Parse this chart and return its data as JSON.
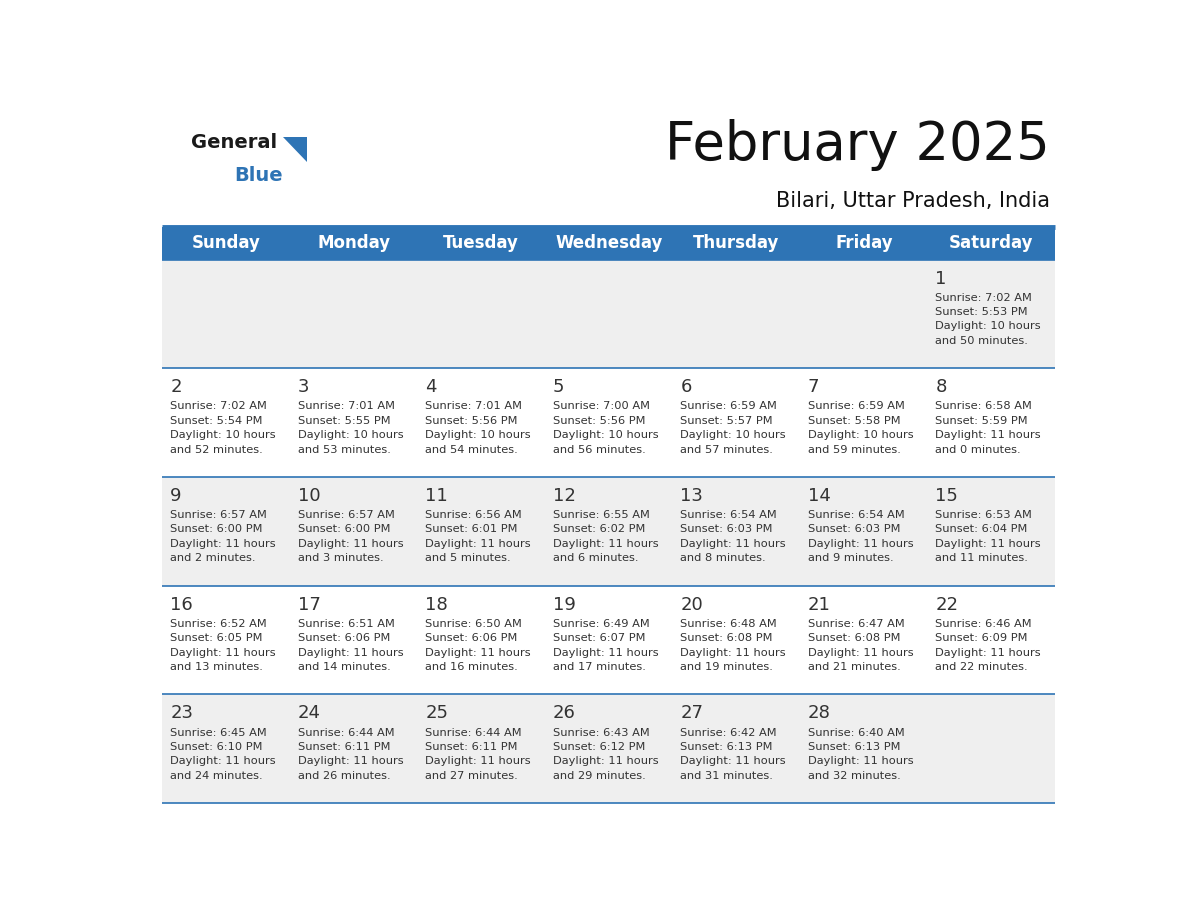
{
  "title": "February 2025",
  "subtitle": "Bilari, Uttar Pradesh, India",
  "header_bg": "#2E74B5",
  "header_text_color": "#FFFFFF",
  "day_names": [
    "Sunday",
    "Monday",
    "Tuesday",
    "Wednesday",
    "Thursday",
    "Friday",
    "Saturday"
  ],
  "cell_bg_white": "#FFFFFF",
  "cell_bg_gray": "#EFEFEF",
  "separator_color": "#2E74B5",
  "day_number_color": "#333333",
  "detail_text_color": "#333333",
  "logo_black": "#1a1a1a",
  "logo_blue": "#2E74B5",
  "calendar": [
    [
      null,
      null,
      null,
      null,
      null,
      null,
      {
        "day": "1",
        "sunrise": "7:02 AM",
        "sunset": "5:53 PM",
        "daylight": "10 hours\nand 50 minutes."
      }
    ],
    [
      {
        "day": "2",
        "sunrise": "7:02 AM",
        "sunset": "5:54 PM",
        "daylight": "10 hours\nand 52 minutes."
      },
      {
        "day": "3",
        "sunrise": "7:01 AM",
        "sunset": "5:55 PM",
        "daylight": "10 hours\nand 53 minutes."
      },
      {
        "day": "4",
        "sunrise": "7:01 AM",
        "sunset": "5:56 PM",
        "daylight": "10 hours\nand 54 minutes."
      },
      {
        "day": "5",
        "sunrise": "7:00 AM",
        "sunset": "5:56 PM",
        "daylight": "10 hours\nand 56 minutes."
      },
      {
        "day": "6",
        "sunrise": "6:59 AM",
        "sunset": "5:57 PM",
        "daylight": "10 hours\nand 57 minutes."
      },
      {
        "day": "7",
        "sunrise": "6:59 AM",
        "sunset": "5:58 PM",
        "daylight": "10 hours\nand 59 minutes."
      },
      {
        "day": "8",
        "sunrise": "6:58 AM",
        "sunset": "5:59 PM",
        "daylight": "11 hours\nand 0 minutes."
      }
    ],
    [
      {
        "day": "9",
        "sunrise": "6:57 AM",
        "sunset": "6:00 PM",
        "daylight": "11 hours\nand 2 minutes."
      },
      {
        "day": "10",
        "sunrise": "6:57 AM",
        "sunset": "6:00 PM",
        "daylight": "11 hours\nand 3 minutes."
      },
      {
        "day": "11",
        "sunrise": "6:56 AM",
        "sunset": "6:01 PM",
        "daylight": "11 hours\nand 5 minutes."
      },
      {
        "day": "12",
        "sunrise": "6:55 AM",
        "sunset": "6:02 PM",
        "daylight": "11 hours\nand 6 minutes."
      },
      {
        "day": "13",
        "sunrise": "6:54 AM",
        "sunset": "6:03 PM",
        "daylight": "11 hours\nand 8 minutes."
      },
      {
        "day": "14",
        "sunrise": "6:54 AM",
        "sunset": "6:03 PM",
        "daylight": "11 hours\nand 9 minutes."
      },
      {
        "day": "15",
        "sunrise": "6:53 AM",
        "sunset": "6:04 PM",
        "daylight": "11 hours\nand 11 minutes."
      }
    ],
    [
      {
        "day": "16",
        "sunrise": "6:52 AM",
        "sunset": "6:05 PM",
        "daylight": "11 hours\nand 13 minutes."
      },
      {
        "day": "17",
        "sunrise": "6:51 AM",
        "sunset": "6:06 PM",
        "daylight": "11 hours\nand 14 minutes."
      },
      {
        "day": "18",
        "sunrise": "6:50 AM",
        "sunset": "6:06 PM",
        "daylight": "11 hours\nand 16 minutes."
      },
      {
        "day": "19",
        "sunrise": "6:49 AM",
        "sunset": "6:07 PM",
        "daylight": "11 hours\nand 17 minutes."
      },
      {
        "day": "20",
        "sunrise": "6:48 AM",
        "sunset": "6:08 PM",
        "daylight": "11 hours\nand 19 minutes."
      },
      {
        "day": "21",
        "sunrise": "6:47 AM",
        "sunset": "6:08 PM",
        "daylight": "11 hours\nand 21 minutes."
      },
      {
        "day": "22",
        "sunrise": "6:46 AM",
        "sunset": "6:09 PM",
        "daylight": "11 hours\nand 22 minutes."
      }
    ],
    [
      {
        "day": "23",
        "sunrise": "6:45 AM",
        "sunset": "6:10 PM",
        "daylight": "11 hours\nand 24 minutes."
      },
      {
        "day": "24",
        "sunrise": "6:44 AM",
        "sunset": "6:11 PM",
        "daylight": "11 hours\nand 26 minutes."
      },
      {
        "day": "25",
        "sunrise": "6:44 AM",
        "sunset": "6:11 PM",
        "daylight": "11 hours\nand 27 minutes."
      },
      {
        "day": "26",
        "sunrise": "6:43 AM",
        "sunset": "6:12 PM",
        "daylight": "11 hours\nand 29 minutes."
      },
      {
        "day": "27",
        "sunrise": "6:42 AM",
        "sunset": "6:13 PM",
        "daylight": "11 hours\nand 31 minutes."
      },
      {
        "day": "28",
        "sunrise": "6:40 AM",
        "sunset": "6:13 PM",
        "daylight": "11 hours\nand 32 minutes."
      },
      null
    ]
  ]
}
